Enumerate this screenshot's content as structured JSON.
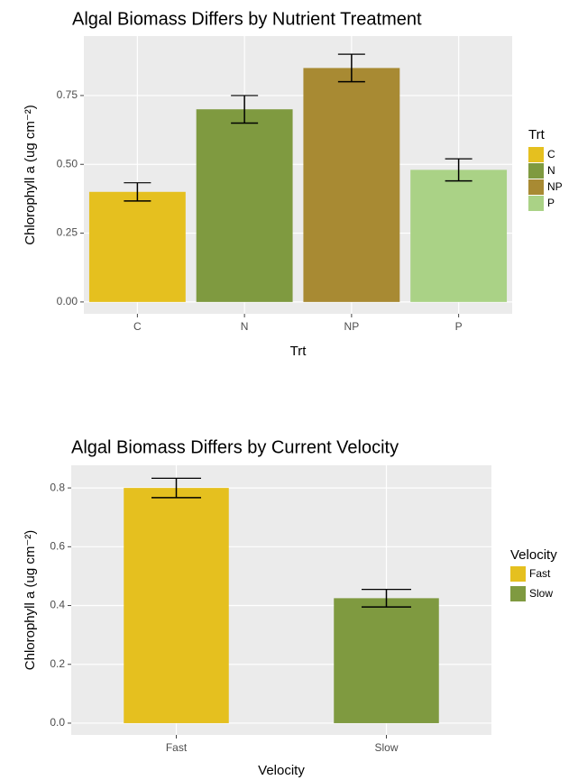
{
  "chart_data": [
    {
      "type": "bar",
      "title": "Algal Biomass Differs by Nutrient Treatment",
      "x_label": "Trt",
      "y_label": "Chlorophyll a (ug cm⁻²)",
      "legend_title": "Trt",
      "categories": [
        "C",
        "N",
        "NP",
        "P"
      ],
      "values": [
        0.4,
        0.7,
        0.85,
        0.48
      ],
      "errors": [
        0.033,
        0.05,
        0.05,
        0.04
      ],
      "colors": [
        "#e5c01f",
        "#7f9a40",
        "#a88a33",
        "#aad286"
      ],
      "ylim": [
        -0.043,
        0.966
      ],
      "yticks": [
        {
          "value": 0,
          "label": "0.00"
        },
        {
          "value": 0.25,
          "label": "0.25"
        },
        {
          "value": 0.5,
          "label": "0.50"
        },
        {
          "value": 0.75,
          "label": "0.75"
        }
      ],
      "grid": true
    },
    {
      "type": "bar",
      "title": "Algal Biomass Differs by Current Velocity",
      "x_label": "Velocity",
      "y_label": "Chlorophyll a (ug cm⁻²)",
      "legend_title": "Velocity",
      "categories": [
        "Fast",
        "Slow"
      ],
      "values": [
        0.8,
        0.425
      ],
      "errors": [
        0.033,
        0.03
      ],
      "colors": [
        "#e5c01f",
        "#7f9a40"
      ],
      "ylim": [
        -0.04,
        0.877
      ],
      "yticks": [
        {
          "value": 0,
          "label": "0.0"
        },
        {
          "value": 0.2,
          "label": "0.2"
        },
        {
          "value": 0.4,
          "label": "0.4"
        },
        {
          "value": 0.6,
          "label": "0.6"
        },
        {
          "value": 0.8,
          "label": "0.8"
        }
      ],
      "grid": true
    }
  ]
}
